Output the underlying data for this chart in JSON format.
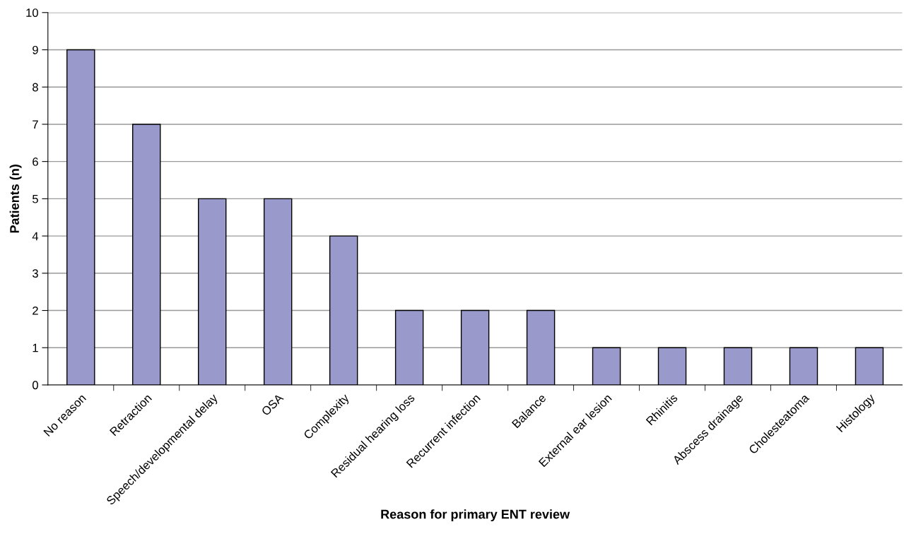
{
  "chart_data": {
    "type": "bar",
    "categories": [
      "No reason",
      "Retraction",
      "Speech/developmental delay",
      "OSA",
      "Complexity",
      "Residual hearing loss",
      "Recurrent infection",
      "Balance",
      "External ear lesion",
      "Rhinitis",
      "Abscess drainage",
      "Cholesteatoma",
      "Histology"
    ],
    "values": [
      9,
      7,
      5,
      5,
      4,
      2,
      2,
      2,
      1,
      1,
      1,
      1,
      1
    ],
    "color": "#9999cc",
    "xlabel": "Reason for primary ENT review",
    "ylabel": "Patients (n)",
    "ylim": [
      0,
      10
    ],
    "yticks": [
      0,
      1,
      2,
      3,
      4,
      5,
      6,
      7,
      8,
      9,
      10
    ],
    "grid": "y",
    "legend": false
  }
}
